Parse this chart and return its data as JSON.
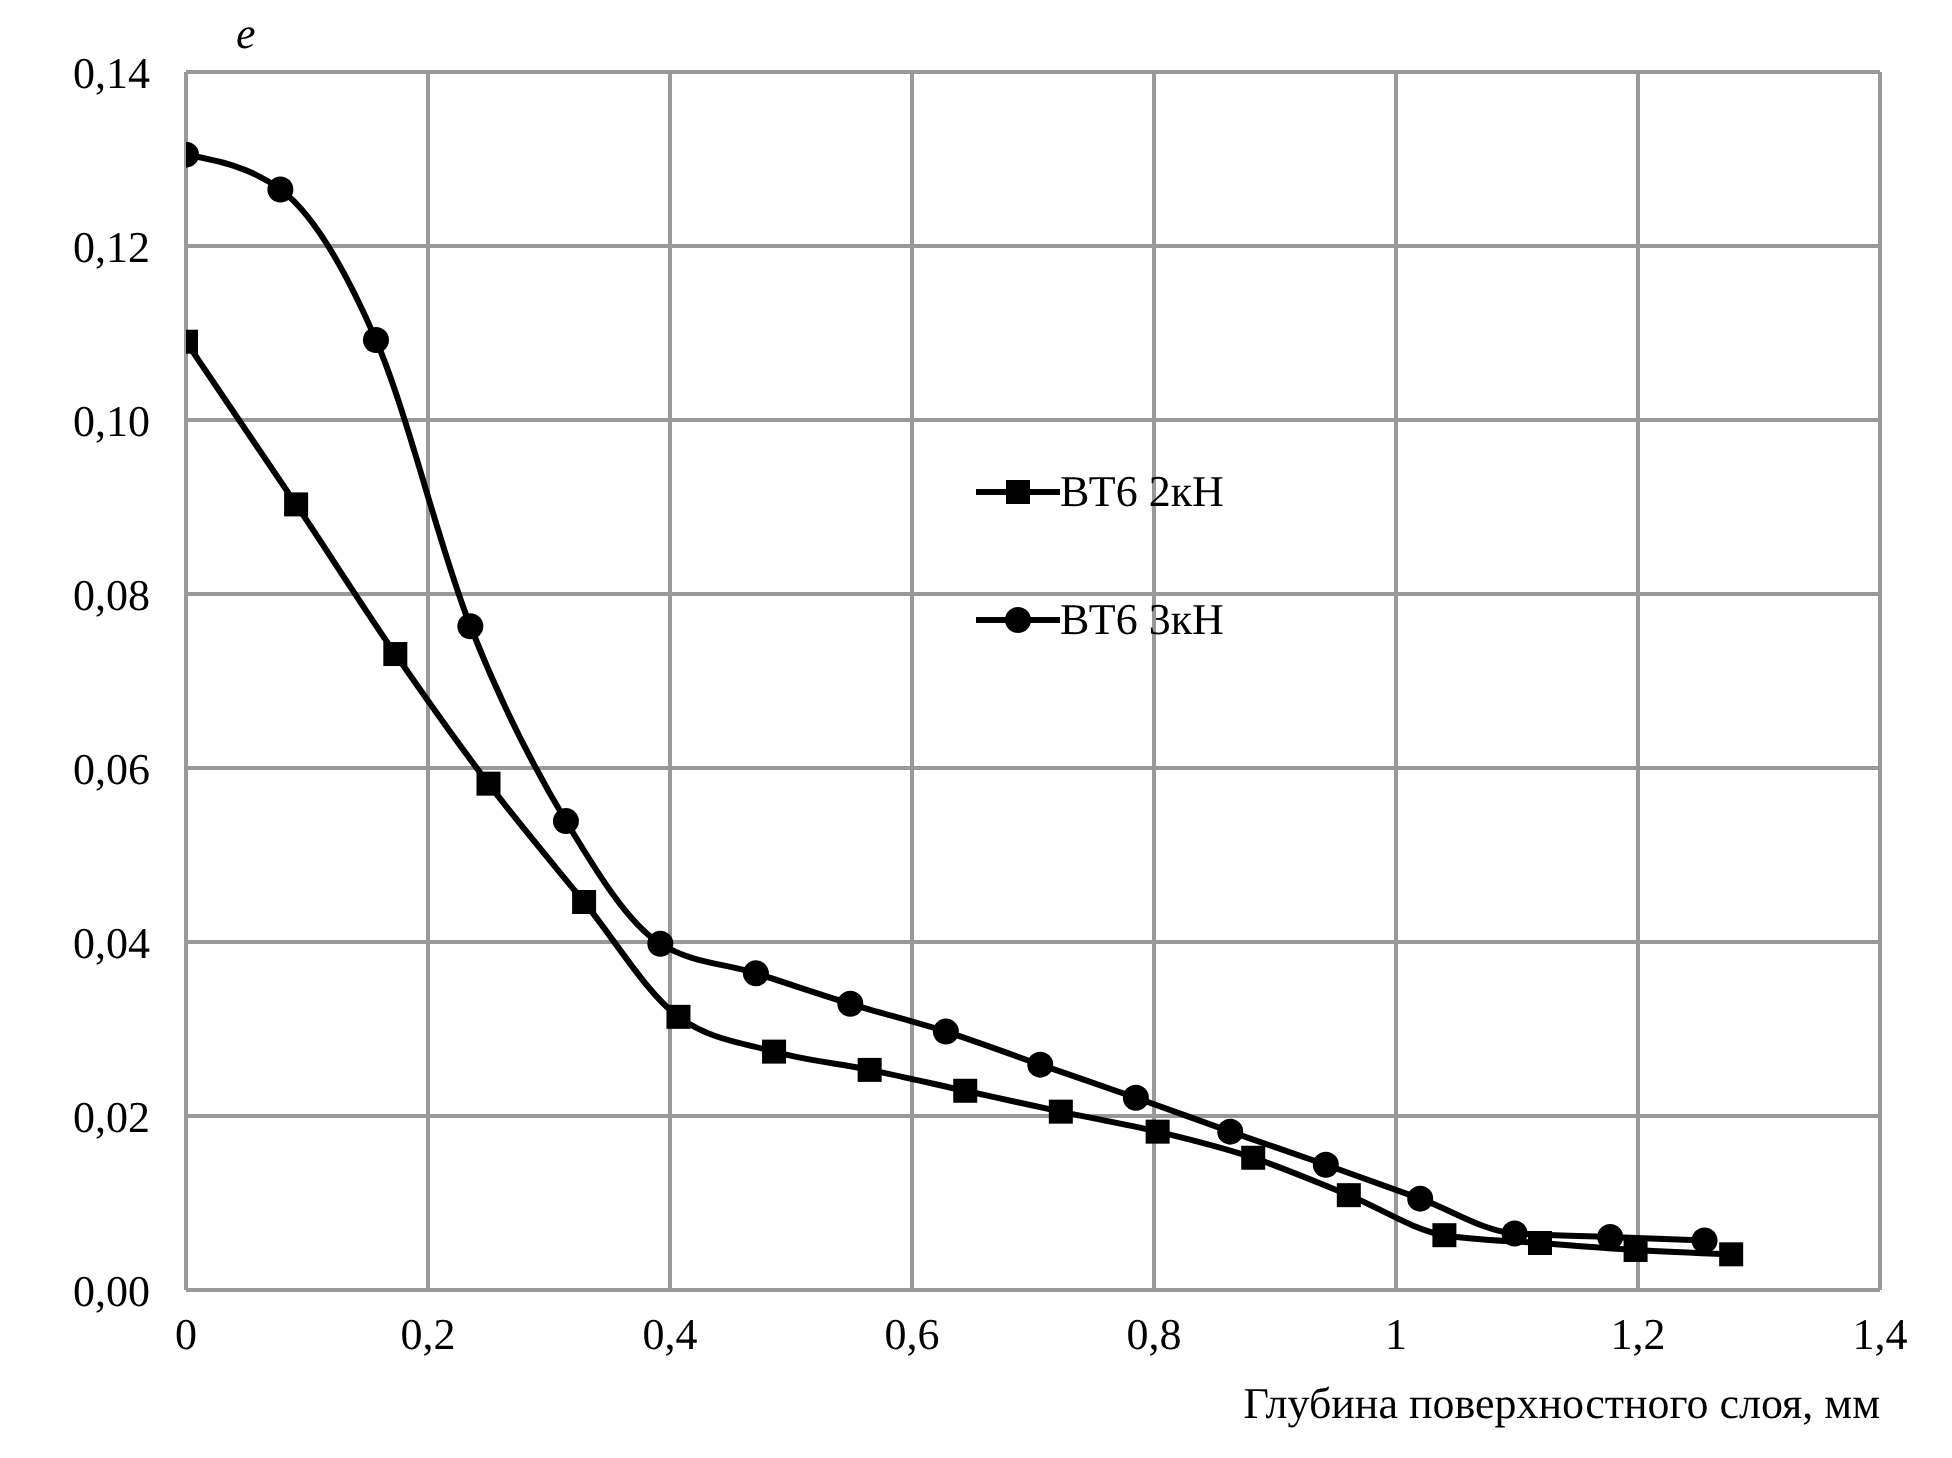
{
  "chart_data": {
    "type": "line",
    "xlabel": "Глубина поверхностного слоя, мм",
    "ylabel": "e",
    "xlim": [
      0,
      1.4
    ],
    "xticks": [
      0,
      {
        "value": 0.2,
        "label": "0,2"
      },
      {
        "value": 0.4,
        "label": "0,4"
      },
      {
        "value": 0.6,
        "label": "0,6"
      },
      {
        "value": 0.8,
        "label": "0,8"
      },
      1,
      {
        "value": 1.2,
        "label": "1,2"
      },
      {
        "value": 1.4,
        "label": "1,4"
      }
    ],
    "ylim": [
      0,
      0.14
    ],
    "yticks": [
      {
        "value": 0,
        "label": "0,00"
      },
      {
        "value": 0.02,
        "label": "0,02"
      },
      {
        "value": 0.04,
        "label": "0,04"
      },
      {
        "value": 0.06,
        "label": "0,06"
      },
      {
        "value": 0.08,
        "label": "0,08"
      },
      {
        "value": 0.1,
        "label": "0,10"
      },
      {
        "value": 0.12,
        "label": "0,12"
      },
      {
        "value": 0.14,
        "label": "0,14"
      }
    ],
    "grid": true,
    "legend": "center",
    "line_style": "solid",
    "series": [
      {
        "name": "ВТ6 2кН",
        "color": "#000000",
        "marker": "square",
        "x": [
          0,
          0.091,
          0.173,
          0.25,
          0.329,
          0.407,
          0.486,
          0.565,
          0.644,
          0.723,
          0.803,
          0.882,
          0.961,
          1.04,
          1.119,
          1.198,
          1.277
        ],
        "values": [
          0.109,
          0.0903,
          0.0731,
          0.0582,
          0.0446,
          0.0314,
          0.0274,
          0.0253,
          0.0229,
          0.0205,
          0.0182,
          0.0152,
          0.0109,
          0.0063,
          0.0054,
          0.0046,
          0.0041
        ]
      },
      {
        "name": "ВТ6 3кН",
        "color": "#000000",
        "marker": "circle",
        "x": [
          0,
          0.078,
          0.157,
          0.235,
          0.314,
          0.392,
          0.471,
          0.549,
          0.628,
          0.706,
          0.785,
          0.863,
          0.942,
          1.02,
          1.098,
          1.177,
          1.255
        ],
        "values": [
          0.1305,
          0.1265,
          0.1092,
          0.0763,
          0.0539,
          0.0398,
          0.0364,
          0.0329,
          0.0297,
          0.0259,
          0.0221,
          0.0182,
          0.0144,
          0.0105,
          0.0065,
          0.0061,
          0.0057
        ]
      }
    ]
  }
}
